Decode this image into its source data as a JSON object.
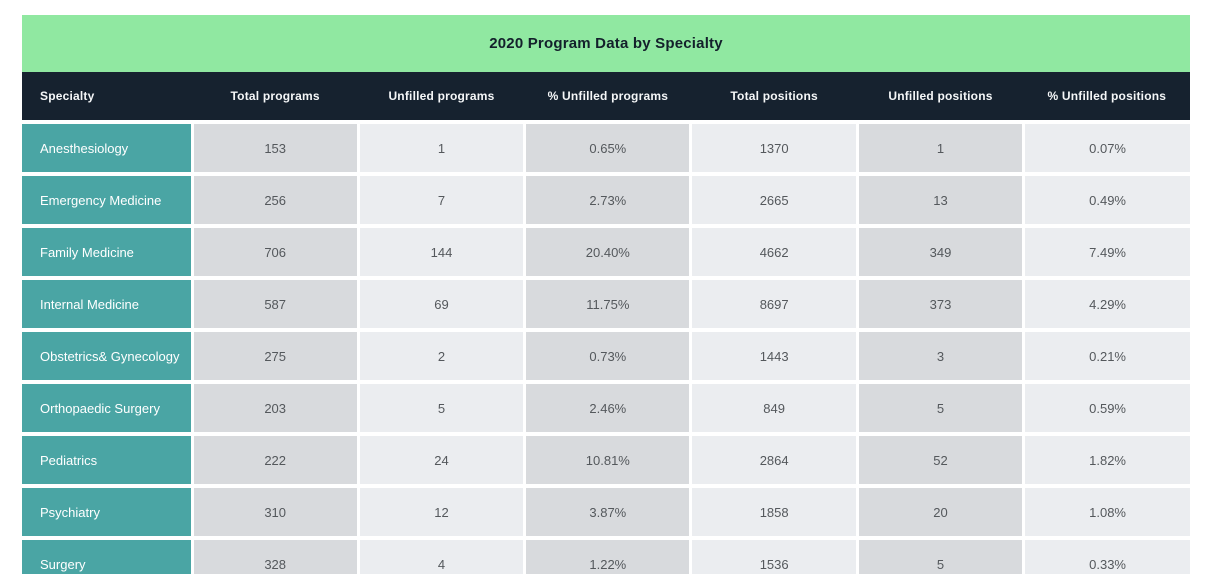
{
  "chart_data": {
    "type": "table",
    "title": "2020 Program Data by Specialty",
    "columns": [
      "Specialty",
      "Total programs",
      "Unfilled programs",
      "% Unfilled programs",
      "Total positions",
      "Unfilled positions",
      "% Unfilled positions"
    ],
    "rows": [
      [
        "Anesthesiology",
        "153",
        "1",
        "0.65%",
        "1370",
        "1",
        "0.07%"
      ],
      [
        "Emergency Medicine",
        "256",
        "7",
        "2.73%",
        "2665",
        "13",
        "0.49%"
      ],
      [
        "Family Medicine",
        "706",
        "144",
        "20.40%",
        "4662",
        "349",
        "7.49%"
      ],
      [
        "Internal Medicine",
        "587",
        "69",
        "11.75%",
        "8697",
        "373",
        "4.29%"
      ],
      [
        "Obstetrics& Gynecology",
        "275",
        "2",
        "0.73%",
        "1443",
        "3",
        "0.21%"
      ],
      [
        "Orthopaedic Surgery",
        "203",
        "5",
        "2.46%",
        "849",
        "5",
        "0.59%"
      ],
      [
        "Pediatrics",
        "222",
        "24",
        "10.81%",
        "2864",
        "52",
        "1.82%"
      ],
      [
        "Psychiatry",
        "310",
        "12",
        "3.87%",
        "1858",
        "20",
        "1.08%"
      ],
      [
        "Surgery",
        "328",
        "4",
        "1.22%",
        "1536",
        "5",
        "0.33%"
      ]
    ],
    "layout": {
      "header_align": "center",
      "specialty_align": "left",
      "value_align": "center",
      "column_shading_pattern": [
        "gray",
        "light",
        "gray",
        "light",
        "gray",
        "light"
      ]
    }
  },
  "colors": {
    "title_bg": "#90e8a1",
    "header_bg": "#16222f",
    "specialty_bg": "#4aa5a4",
    "cell_gray": "#d8dadd",
    "cell_light": "#ebedf0",
    "title_text": "#13202b",
    "header_text": "#f5f7f8",
    "cell_text": "#54585c",
    "separator": "#ffffff"
  }
}
